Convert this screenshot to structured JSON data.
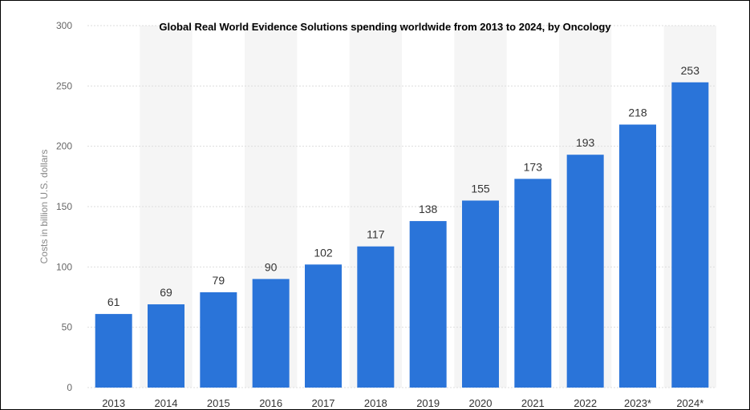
{
  "chart_data": {
    "type": "bar",
    "title": "Global Real World Evidence Solutions spending worldwide from 2013 to 2024, by Oncology",
    "xlabel": "",
    "ylabel": "Costs in billion U.S. dollars",
    "categories": [
      "2013",
      "2014",
      "2015",
      "2016",
      "2017",
      "2018",
      "2019",
      "2020",
      "2021",
      "2022",
      "2023*",
      "2024*"
    ],
    "values": [
      61,
      69,
      79,
      90,
      102,
      117,
      138,
      155,
      173,
      193,
      218,
      253
    ],
    "ylim": [
      0,
      300
    ],
    "yticks": [
      0,
      50,
      100,
      150,
      200,
      250,
      300
    ],
    "grid": true,
    "bar_color": "#2a74d9",
    "band_color": "#f5f5f5"
  }
}
